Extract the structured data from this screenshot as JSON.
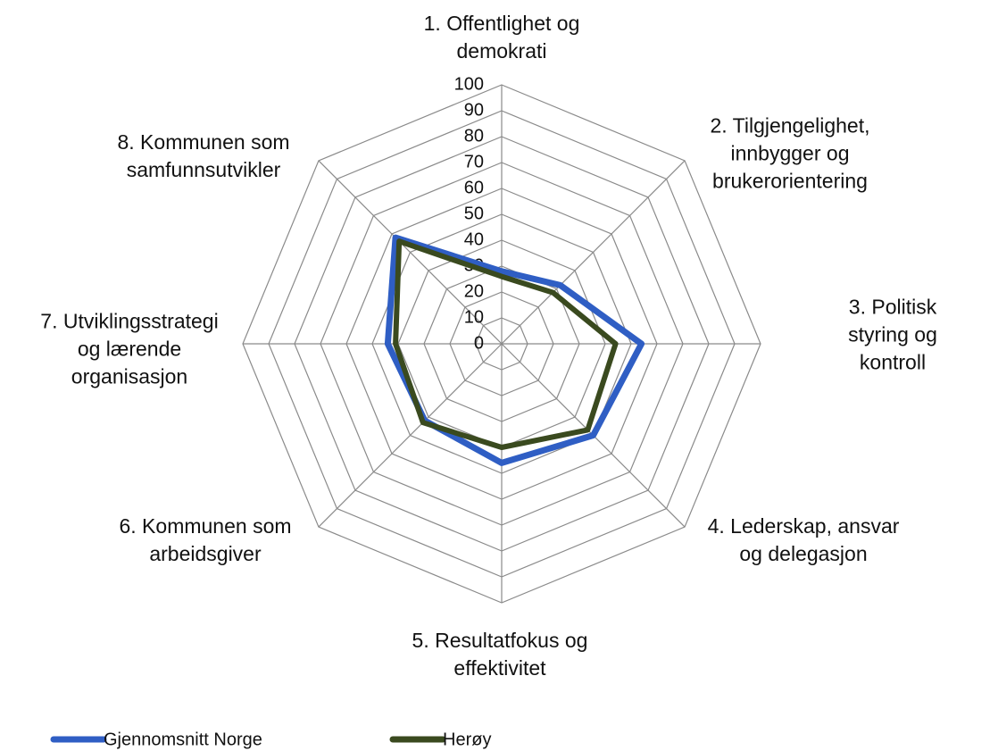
{
  "chart_data": {
    "type": "radar",
    "categories": [
      "1. Offentlighet og\ndemokrati",
      "2. Tilgjengelighet,\ninnbygger og\nbrukerorientering",
      "3. Politisk styring og\nkontroll",
      "4. Lederskap, ansvar\nog delegasjon",
      "5. Resultatfokus og\neffektivitet",
      "6. Kommunen som\narbeidsgiver",
      "7. Utviklingsstrategi\nog lærende\norganisasjon",
      "8. Kommunen som\nsamfunnsutvikler"
    ],
    "series": [
      {
        "name": "Gjennomsnitt Norge",
        "color": "#2f5ec4",
        "values": [
          28,
          32,
          54,
          50,
          46,
          42,
          44,
          58
        ]
      },
      {
        "name": "Herøy",
        "color": "#3a4a1f",
        "values": [
          26,
          28,
          44,
          47,
          40,
          43,
          41,
          56
        ]
      }
    ],
    "ylim": [
      0,
      100
    ],
    "yticks": [
      0,
      10,
      20,
      30,
      40,
      50,
      60,
      70,
      80,
      90,
      100
    ],
    "grid": true,
    "legend": "bottom"
  }
}
